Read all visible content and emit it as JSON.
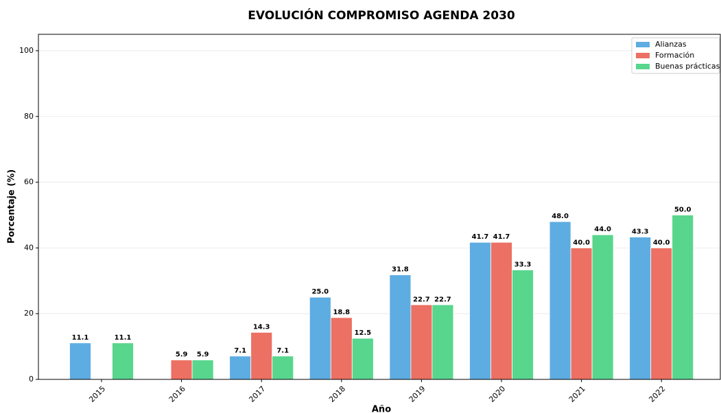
{
  "chart_data": {
    "type": "bar",
    "title": "EVOLUCIÓN COMPROMISO AGENDA 2030",
    "x_label": "Año",
    "y_label": "Porcentaje (%)",
    "categories": [
      "2015",
      "2016",
      "2017",
      "2018",
      "2019",
      "2020",
      "2021",
      "2022"
    ],
    "series": [
      {
        "name": "Alianzas",
        "color": "#5dade2",
        "values": [
          11.1,
          0,
          7.1,
          25.0,
          31.8,
          41.7,
          48.0,
          43.3
        ],
        "value_labels": [
          "11.1",
          null,
          "7.1",
          "25.0",
          "31.8",
          "41.7",
          "48.0",
          "43.3"
        ]
      },
      {
        "name": "Formación",
        "color": "#ec7063",
        "values": [
          0,
          5.9,
          14.3,
          18.8,
          22.7,
          41.7,
          40.0,
          40.0
        ],
        "value_labels": [
          null,
          "5.9",
          "14.3",
          "18.8",
          "22.7",
          "41.7",
          "40.0",
          "40.0"
        ]
      },
      {
        "name": "Buenas prácticas",
        "color": "#58d68d",
        "values": [
          11.1,
          5.9,
          7.1,
          12.5,
          22.7,
          33.3,
          44.0,
          50.0
        ],
        "value_labels": [
          "11.1",
          "5.9",
          "7.1",
          "12.5",
          "22.7",
          "33.3",
          "44.0",
          "50.0"
        ]
      }
    ],
    "ylim": [
      0,
      105
    ],
    "yticks": [
      0,
      20,
      40,
      60,
      80,
      100
    ],
    "grid": true,
    "legend": "upper right"
  }
}
